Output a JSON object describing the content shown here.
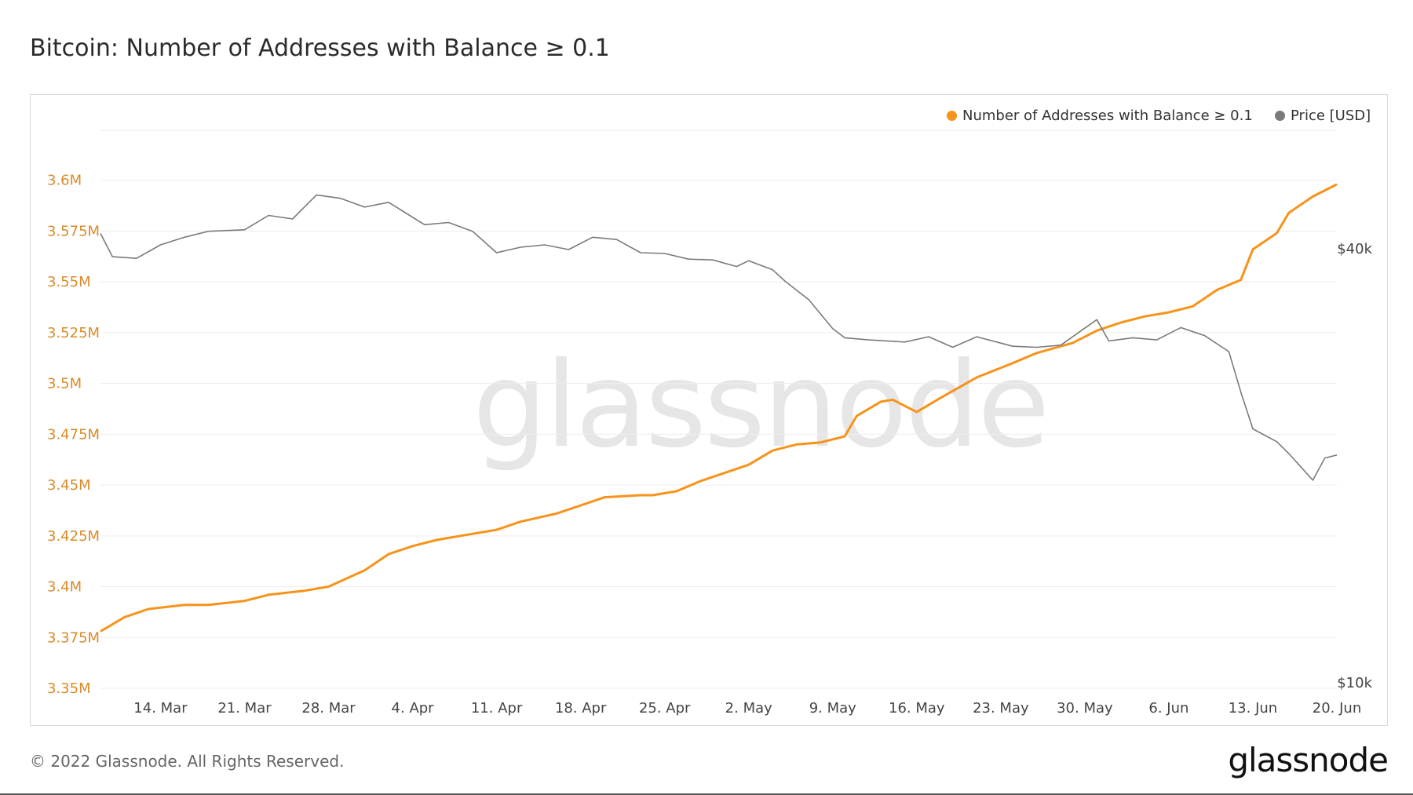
{
  "title": "Bitcoin: Number of Addresses with Balance ≥ 0.1",
  "footer": "© 2022 Glassnode. All Rights Reserved.",
  "footer_logo": "glassnode",
  "watermark": "glassnode",
  "colors": {
    "addresses": "#f7931a",
    "price": "#7a7a7a",
    "left_axis_text": "#d98b2b",
    "grid": "#eeeeee"
  },
  "legend": [
    {
      "label": "Number of Addresses with Balance ≥ 0.1",
      "color": "#f7931a"
    },
    {
      "label": "Price [USD]",
      "color": "#7a7a7a"
    }
  ],
  "chart_data": {
    "type": "line",
    "x_ticks": [
      "14. Mar",
      "21. Mar",
      "28. Mar",
      "4. Apr",
      "11. Apr",
      "18. Apr",
      "25. Apr",
      "2. May",
      "9. May",
      "16. May",
      "23. May",
      "30. May",
      "6. Jun",
      "13. Jun",
      "20. Jun"
    ],
    "x_range": [
      "2022-03-09",
      "2022-06-20"
    ],
    "y_left": {
      "ticks": [
        "3.35M",
        "3.375M",
        "3.4M",
        "3.425M",
        "3.45M",
        "3.475M",
        "3.5M",
        "3.525M",
        "3.55M",
        "3.575M",
        "3.6M"
      ],
      "range": [
        3350000,
        3625000
      ]
    },
    "y_right": {
      "scale": "log",
      "ticks": [
        "$10k",
        "$40k"
      ],
      "tick_values": [
        10000,
        40000
      ]
    },
    "grid": true,
    "legend_position": "top-right",
    "series": [
      {
        "name": "Number of Addresses with Balance ≥ 0.1",
        "axis": "left",
        "x": [
          "2022-03-09",
          "2022-03-11",
          "2022-03-13",
          "2022-03-16",
          "2022-03-18",
          "2022-03-21",
          "2022-03-23",
          "2022-03-26",
          "2022-03-28",
          "2022-03-31",
          "2022-04-02",
          "2022-04-04",
          "2022-04-06",
          "2022-04-09",
          "2022-04-11",
          "2022-04-13",
          "2022-04-16",
          "2022-04-18",
          "2022-04-20",
          "2022-04-23",
          "2022-04-24",
          "2022-04-26",
          "2022-04-28",
          "2022-04-30",
          "2022-05-02",
          "2022-05-04",
          "2022-05-06",
          "2022-05-08",
          "2022-05-10",
          "2022-05-11",
          "2022-05-13",
          "2022-05-14",
          "2022-05-16",
          "2022-05-18",
          "2022-05-21",
          "2022-05-24",
          "2022-05-26",
          "2022-05-29",
          "2022-05-31",
          "2022-06-02",
          "2022-06-04",
          "2022-06-06",
          "2022-06-08",
          "2022-06-10",
          "2022-06-12",
          "2022-06-13",
          "2022-06-15",
          "2022-06-16",
          "2022-06-18",
          "2022-06-20"
        ],
        "values": [
          3378000,
          3385000,
          3389000,
          3391000,
          3391000,
          3393000,
          3396000,
          3398000,
          3400000,
          3408000,
          3416000,
          3420000,
          3423000,
          3426000,
          3428000,
          3432000,
          3436000,
          3440000,
          3444000,
          3445000,
          3445000,
          3447000,
          3452000,
          3456000,
          3460000,
          3467000,
          3470000,
          3471000,
          3474000,
          3484000,
          3491000,
          3492000,
          3486000,
          3493000,
          3503000,
          3510000,
          3515000,
          3520000,
          3526000,
          3530000,
          3533000,
          3535000,
          3538000,
          3546000,
          3551000,
          3566000,
          3574000,
          3584000,
          3592000,
          3598000
        ]
      },
      {
        "name": "Price [USD]",
        "axis": "right",
        "x": [
          "2022-03-09",
          "2022-03-10",
          "2022-03-12",
          "2022-03-14",
          "2022-03-16",
          "2022-03-18",
          "2022-03-21",
          "2022-03-23",
          "2022-03-25",
          "2022-03-27",
          "2022-03-29",
          "2022-03-31",
          "2022-04-02",
          "2022-04-05",
          "2022-04-07",
          "2022-04-09",
          "2022-04-11",
          "2022-04-13",
          "2022-04-15",
          "2022-04-17",
          "2022-04-19",
          "2022-04-21",
          "2022-04-23",
          "2022-04-25",
          "2022-04-27",
          "2022-04-29",
          "2022-05-01",
          "2022-05-02",
          "2022-05-04",
          "2022-05-05",
          "2022-05-07",
          "2022-05-09",
          "2022-05-10",
          "2022-05-12",
          "2022-05-15",
          "2022-05-17",
          "2022-05-19",
          "2022-05-21",
          "2022-05-24",
          "2022-05-26",
          "2022-05-28",
          "2022-05-31",
          "2022-06-01",
          "2022-06-03",
          "2022-06-05",
          "2022-06-07",
          "2022-06-09",
          "2022-06-11",
          "2022-06-12",
          "2022-06-13",
          "2022-06-15",
          "2022-06-16",
          "2022-06-18",
          "2022-06-19",
          "2022-06-20"
        ],
        "values": [
          42000,
          39000,
          38800,
          40500,
          41500,
          42300,
          42500,
          44500,
          44000,
          47500,
          47000,
          45700,
          46400,
          43200,
          43500,
          42300,
          39500,
          40200,
          40500,
          39900,
          41500,
          41200,
          39500,
          39400,
          38700,
          38600,
          37800,
          38500,
          37400,
          36100,
          34000,
          31000,
          30100,
          29900,
          29700,
          30200,
          29200,
          30200,
          29300,
          29200,
          29400,
          31900,
          29800,
          30100,
          29900,
          31100,
          30300,
          28800,
          25300,
          22500,
          21600,
          20800,
          19100,
          20500,
          20700
        ]
      }
    ]
  }
}
